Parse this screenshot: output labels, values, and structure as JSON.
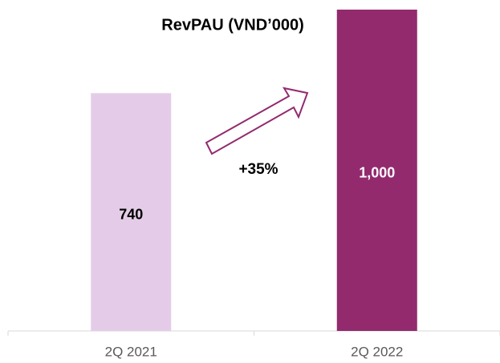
{
  "chart_data": {
    "type": "bar",
    "title": "RevPAU (VND’000)",
    "categories": [
      "2Q 2021",
      "2Q 2022"
    ],
    "values": [
      740,
      1000
    ],
    "value_labels": [
      "740",
      "1,000"
    ],
    "colors": [
      "#e4cce8",
      "#932a6e"
    ],
    "annotation": "+35%"
  }
}
